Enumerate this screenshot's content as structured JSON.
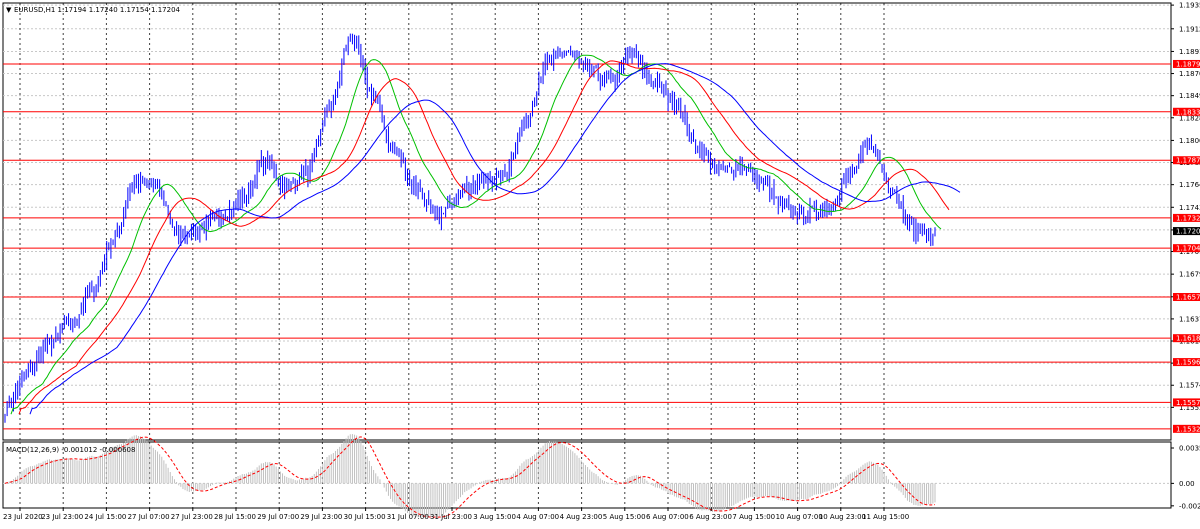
{
  "header": {
    "marker": "▼",
    "symbol_line": "EURUSD,H1  1.17194 1.17240 1.17154 1.17204"
  },
  "chart_data": [
    {
      "type": "candlestick",
      "name": "EURUSD,H1",
      "ohlc_last": {
        "open": 1.17194,
        "high": 1.1724,
        "low": 1.17154,
        "close": 1.17204
      },
      "ylim": [
        1.1522,
        1.1937
      ],
      "y_tick_labels": [
        "1.19350",
        "1.19125",
        "1.18910",
        "1.18700",
        "1.18490",
        "1.18280",
        "1.18065",
        "1.17855",
        "1.17645",
        "1.17430",
        "1.17215",
        "1.17010",
        "1.16795",
        "1.16580",
        "1.16370",
        "1.16160",
        "1.15950",
        "1.15740",
        "1.15530"
      ],
      "x_tick_labels": [
        "23 Jul 2020",
        "23 Jul 23:00",
        "24 Jul 15:00",
        "27 Jul 07:00",
        "27 Jul 23:00",
        "28 Jul 15:00",
        "29 Jul 07:00",
        "29 Jul 23:00",
        "30 Jul 15:00",
        "31 Jul 07:00",
        "31 Jul 23:00",
        "3 Aug 15:00",
        "4 Aug 07:00",
        "4 Aug 23:00",
        "5 Aug 15:00",
        "6 Aug 07:00",
        "6 Aug 23:00",
        "7 Aug 15:00",
        "10 Aug 07:00",
        "10 Aug 23:00",
        "11 Aug 15:00"
      ],
      "grid": true,
      "anchors": [
        1.1552,
        1.1585,
        1.1612,
        1.1632,
        1.1662,
        1.1712,
        1.1768,
        1.1762,
        1.1718,
        1.1722,
        1.1734,
        1.1752,
        1.1786,
        1.1762,
        1.1776,
        1.1838,
        1.1905,
        1.1848,
        1.1798,
        1.1762,
        1.1732,
        1.1758,
        1.1768,
        1.1772,
        1.1822,
        1.1878,
        1.1892,
        1.1872,
        1.1862,
        1.1888,
        1.1862,
        1.1842,
        1.1802,
        1.1778,
        1.1782,
        1.1768,
        1.1742,
        1.1738,
        1.1742,
        1.1772,
        1.1802,
        1.1762,
        1.1722,
        1.1716
      ],
      "candle_color": "#0000ff",
      "moving_averages": [
        {
          "period": 8,
          "color": "#00c000"
        },
        {
          "period": 14,
          "color": "#ff0000"
        },
        {
          "period": 21,
          "color": "#0000ff"
        }
      ],
      "horizontal_levels": [
        {
          "value": 1.18791,
          "label": "1.18791"
        },
        {
          "value": 1.18337,
          "label": "1.18337"
        },
        {
          "value": 1.17877,
          "label": "1.17877"
        },
        {
          "value": 1.17329,
          "label": "1.17329"
        },
        {
          "value": 1.17042,
          "label": "1.17042"
        },
        {
          "value": 1.16578,
          "label": "1.16578"
        },
        {
          "value": 1.16187,
          "label": "1.16187"
        },
        {
          "value": 1.1596,
          "label": "1.15960"
        },
        {
          "value": 1.15577,
          "label": "1.15577"
        },
        {
          "value": 1.15326,
          "label": "1.15326"
        }
      ],
      "level_color": "#ff0000",
      "current_price": {
        "value": 1.17204,
        "label": "1.17204"
      }
    },
    {
      "type": "histogram",
      "name": "MACD(12,26,9)",
      "label": "MACD(12,26,9) -0.001012 -0.000608",
      "ylim": [
        -0.0025,
        0.0042
      ],
      "y_tick_labels": [
        "0.00359",
        "0.00",
        "-0.00228"
      ],
      "y_tick_values": [
        0.00359,
        0.0,
        -0.00228
      ],
      "histogram_color": "#c0c0c0",
      "signal_color": "#ff0000",
      "last_values": {
        "main": -0.001012,
        "signal": -0.000608
      }
    }
  ]
}
